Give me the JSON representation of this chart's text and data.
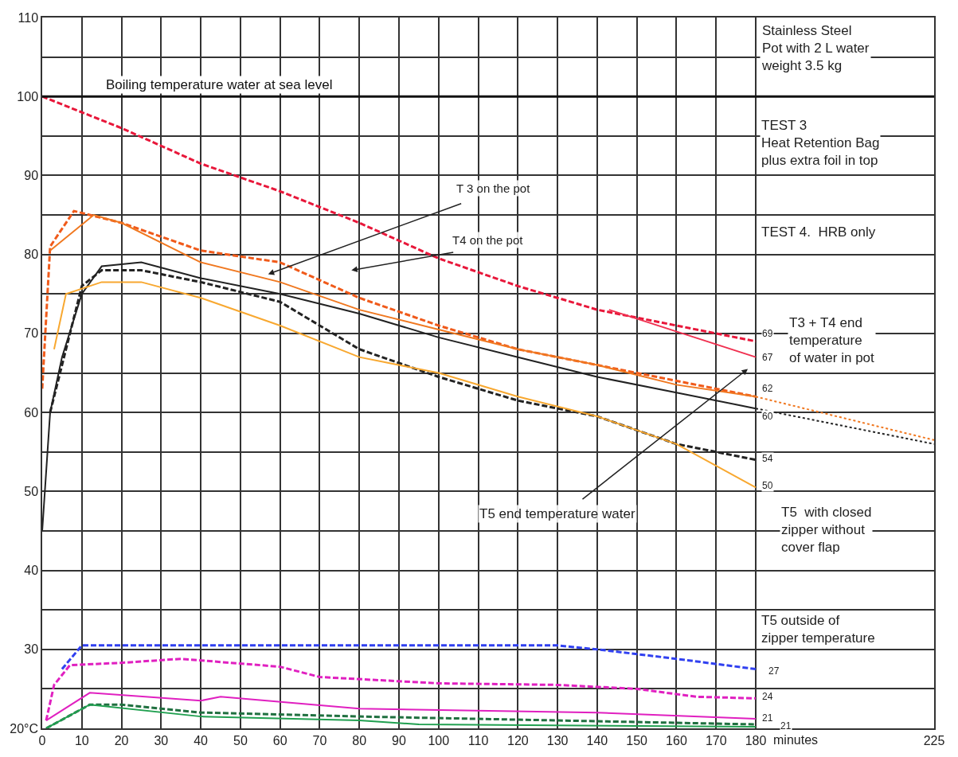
{
  "chart_data": {
    "type": "line",
    "xlabel": "minutes",
    "xlim": [
      0,
      225
    ],
    "xticks": [
      0,
      10,
      20,
      30,
      40,
      50,
      60,
      70,
      80,
      90,
      100,
      110,
      120,
      130,
      140,
      150,
      160,
      170,
      180,
      225
    ],
    "ylim": [
      20,
      110
    ],
    "yticks": [
      {
        "value": 20,
        "label": "20°C"
      },
      {
        "value": 25,
        "label": null
      },
      30,
      {
        "value": 35,
        "label": null
      },
      40,
      {
        "value": 45,
        "label": null
      },
      50,
      {
        "value": 55,
        "label": null
      },
      60,
      {
        "value": 65,
        "label": null
      },
      70,
      {
        "value": 75,
        "label": null
      },
      80,
      {
        "value": 85,
        "label": null
      },
      90,
      {
        "value": 95,
        "label": null
      },
      100,
      {
        "value": 105,
        "label": null
      },
      110
    ],
    "grid": true,
    "marker": "none",
    "ref_lines": [
      {
        "axis": "y",
        "value": 100,
        "label": "Boiling temperature water at sea level",
        "color": "#111111"
      }
    ],
    "series": [
      {
        "color": "#e8173a",
        "line_style": "dashed",
        "x": [
          0,
          10,
          20,
          40,
          60,
          80,
          100,
          120,
          140,
          160,
          180
        ],
        "values": [
          100,
          98,
          96,
          91.5,
          88,
          84,
          79.5,
          76,
          73,
          71,
          69
        ]
      },
      {
        "color": "#f03050",
        "line_style": "solid",
        "x": [
          143,
          180
        ],
        "values": [
          73,
          67
        ]
      },
      {
        "color": "#f05a1a",
        "line_style": "dashed",
        "x": [
          0,
          2,
          8,
          20,
          40,
          60,
          80,
          100,
          120,
          140,
          160,
          180
        ],
        "values": [
          63,
          81,
          85.5,
          84,
          80.5,
          79,
          74.5,
          71,
          68,
          66,
          64,
          62
        ]
      },
      {
        "color": "#f07820",
        "line_style": "solid",
        "x": [
          2,
          13,
          20,
          40,
          60,
          80,
          100,
          120,
          140,
          160,
          180
        ],
        "values": [
          80.5,
          85,
          84,
          79,
          76.5,
          73,
          70.5,
          68,
          66,
          63.5,
          62
        ]
      },
      {
        "color": "#f07820",
        "line_style": "dotted",
        "x": [
          180,
          225
        ],
        "values": [
          62,
          56.5
        ]
      },
      {
        "color": "#222222",
        "line_style": "solid",
        "x": [
          0,
          2,
          5,
          10,
          15,
          25,
          40,
          60,
          80,
          100,
          120,
          140,
          160,
          180
        ],
        "values": [
          45,
          60,
          67,
          75,
          78.5,
          79,
          77,
          75,
          72.5,
          69.5,
          67,
          64.5,
          62.5,
          60.5
        ]
      },
      {
        "color": "#222222",
        "line_style": "dotted",
        "x": [
          180,
          225
        ],
        "values": [
          60.5,
          56
        ]
      },
      {
        "color": "#222222",
        "line_style": "dashed",
        "x": [
          2,
          10,
          15,
          25,
          40,
          60,
          80,
          100,
          120,
          140,
          160,
          180
        ],
        "values": [
          60,
          76,
          78,
          78,
          76.5,
          74,
          68,
          64.5,
          61.5,
          59.5,
          56,
          54
        ]
      },
      {
        "color": "#f8a830",
        "line_style": "solid",
        "x": [
          3,
          6,
          15,
          25,
          40,
          60,
          80,
          100,
          120,
          140,
          160,
          180
        ],
        "values": [
          68,
          75,
          76.5,
          76.5,
          74.5,
          71,
          67,
          65,
          62,
          59.5,
          56,
          50.5
        ]
      },
      {
        "color": "#3040f0",
        "line_style": "dashed",
        "x": [
          5,
          10,
          20,
          40,
          60,
          80,
          100,
          130,
          140,
          160,
          180
        ],
        "values": [
          27.5,
          30.5,
          30.5,
          30.5,
          30.5,
          30.5,
          30.5,
          30.5,
          30,
          28.8,
          27.5
        ]
      },
      {
        "color": "#e020c0",
        "line_style": "dashed",
        "x": [
          1,
          3,
          7,
          20,
          35,
          60,
          70,
          100,
          130,
          150,
          165,
          180
        ],
        "values": [
          21,
          25.5,
          28,
          28.3,
          28.8,
          27.8,
          26.5,
          25.7,
          25.5,
          25,
          24,
          23.8
        ]
      },
      {
        "color": "#e020c0",
        "line_style": "solid",
        "x": [
          1,
          12,
          40,
          45,
          80,
          140,
          180
        ],
        "values": [
          21,
          24.5,
          23.5,
          24,
          22.5,
          22,
          21.2
        ]
      },
      {
        "color": "#207040",
        "line_style": "dashed",
        "x": [
          1,
          12,
          20,
          40,
          80,
          180
        ],
        "values": [
          20,
          23,
          23,
          22,
          21.5,
          20.5
        ]
      },
      {
        "color": "#20a050",
        "line_style": "solid",
        "x": [
          1,
          12,
          40,
          80,
          95,
          180
        ],
        "values": [
          20,
          23,
          21.5,
          21,
          20.5,
          20.2
        ]
      }
    ],
    "annotations": [
      "Stainless Steel\nPot with 2 L water\nweight 3.5 kg",
      "TEST 3\nHeat Retention Bag\nplus extra foil in top",
      "TEST 4.  HRB only",
      "T3 + T4 end\ntemperature\nof water in pot",
      "T5  with closed\nzipper without\ncover flap",
      "T5 outside of\nzipper temperature",
      "T 3 on the pot",
      "T4 on the pot",
      "T5 end temperature water",
      "69",
      "67",
      "62",
      "60",
      "54",
      "50",
      "27",
      "24",
      "21",
      "21"
    ]
  }
}
